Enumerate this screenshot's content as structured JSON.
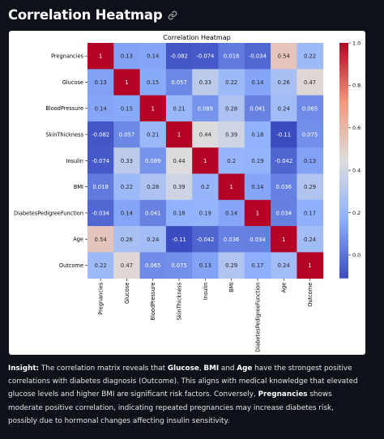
{
  "page": {
    "title": "Correlation Heatmap",
    "link_icon": "link-icon"
  },
  "chart_data": {
    "type": "heatmap",
    "title": "Correlation Heatmap",
    "rows": [
      "Pregnancies",
      "Glucose",
      "BloodPressure",
      "SkinThickness",
      "Insulin",
      "BMI",
      "DiabetesPedigreeFunction",
      "Age",
      "Outcome"
    ],
    "columns": [
      "Pregnancies",
      "Glucose",
      "BloodPressure",
      "SkinThickness",
      "Insulin",
      "BMI",
      "DiabetesPedigreeFunction",
      "Age",
      "Outcome"
    ],
    "values": [
      [
        1,
        0.13,
        0.14,
        -0.082,
        -0.074,
        0.018,
        -0.034,
        0.54,
        0.22
      ],
      [
        0.13,
        1,
        0.15,
        0.057,
        0.33,
        0.22,
        0.14,
        0.26,
        0.47
      ],
      [
        0.14,
        0.15,
        1,
        0.21,
        0.089,
        0.28,
        0.041,
        0.24,
        0.065
      ],
      [
        -0.082,
        0.057,
        0.21,
        1,
        0.44,
        0.39,
        0.18,
        -0.11,
        0.075
      ],
      [
        -0.074,
        0.33,
        0.089,
        0.44,
        1,
        0.2,
        0.19,
        -0.042,
        0.13
      ],
      [
        0.018,
        0.22,
        0.28,
        0.39,
        0.2,
        1,
        0.14,
        0.036,
        0.29
      ],
      [
        -0.034,
        0.14,
        0.041,
        0.18,
        0.19,
        0.14,
        1,
        0.034,
        0.17
      ],
      [
        0.54,
        0.26,
        0.24,
        -0.11,
        -0.042,
        0.036,
        0.034,
        1,
        0.24
      ],
      [
        0.22,
        0.47,
        0.065,
        0.075,
        0.13,
        0.29,
        0.17,
        0.24,
        1
      ]
    ],
    "colormap": "coolwarm",
    "vmin": -0.11,
    "vmax": 1.0,
    "colorbar_ticks": [
      "0.0",
      "0.2",
      "0.4",
      "0.6",
      "0.8",
      "1.0"
    ],
    "colorbar_tick_values": [
      0.0,
      0.2,
      0.4,
      0.6,
      0.8,
      1.0
    ],
    "annotations": true
  },
  "insight": {
    "label": "Insight:",
    "t1": " The correlation matrix reveals that ",
    "b1": "Glucose",
    "t2": ", ",
    "b2": "BMI",
    "t3": " and ",
    "b3": "Age",
    "t4": " have the strongest positive correlations with diabetes diagnosis (Outcome). This aligns with medical knowledge that elevated glucose levels and higher BMI are significant risk factors. Conversely, ",
    "b4": "Pregnancies",
    "t5": " shows moderate positive correlation, indicating repeated pregnancies may increase diabetes risk, possibly due to hormonal changes affecting insulin sensitivity."
  }
}
